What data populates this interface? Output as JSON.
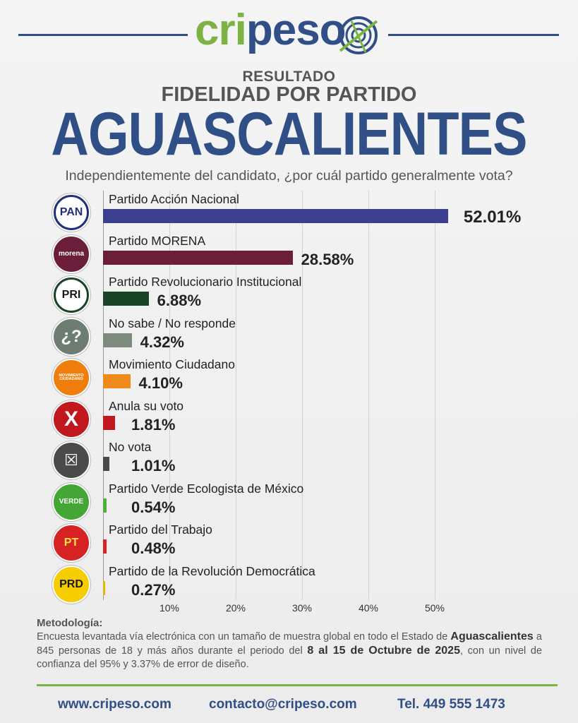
{
  "brand": {
    "part1": "cri",
    "part2": "peso"
  },
  "header": {
    "resultado": "RESULTADO",
    "fidelidad": "FIDELIDAD POR PARTIDO",
    "estado": "AGUASCALIENTES"
  },
  "chart_data": {
    "type": "bar",
    "orientation": "horizontal",
    "title": "Independientemente del candidato, ¿por cuál partido generalmente vota?",
    "xlim": [
      0,
      55
    ],
    "ticks": [
      "10%",
      "20%",
      "30%",
      "40%",
      "50%"
    ],
    "tick_values": [
      10,
      20,
      30,
      40,
      50
    ],
    "categories": [
      "Partido Acción Nacional",
      "Partido MORENA",
      "Partido Revolucionario Institucional",
      "No sabe / No responde",
      "Movimiento Ciudadano",
      "Anula su voto",
      "No vota",
      "Partido Verde Ecologista de México",
      "Partido del Trabajo",
      "Partido de la Revolución Democrática"
    ],
    "values": [
      52.01,
      28.58,
      6.88,
      4.32,
      4.1,
      1.81,
      1.01,
      0.54,
      0.48,
      0.27
    ],
    "value_labels": [
      "52.01%",
      "28.58%",
      "6.88%",
      "4.32%",
      "4.10%",
      "1.81%",
      "1.01%",
      "0.54%",
      "0.48%",
      "0.27%"
    ],
    "colors": [
      "#3b3f8f",
      "#6b1d3a",
      "#1a4428",
      "#7d8b7f",
      "#f08a1c",
      "#c0181c",
      "#4a4a4a",
      "#4fae3b",
      "#d62222",
      "#e8b800"
    ],
    "icons": [
      {
        "name": "pan-logo-icon",
        "text": "PAN",
        "bg": "#ffffff",
        "fg": "#22307a",
        "border": "#22307a"
      },
      {
        "name": "morena-logo-icon",
        "text": "morena",
        "bg": "#6b1d3a",
        "fg": "#ffffff",
        "border": "#6b1d3a"
      },
      {
        "name": "pri-logo-icon",
        "text": "PRI",
        "bg": "#ffffff",
        "fg": "#1a1a1a",
        "border": "#1a4428"
      },
      {
        "name": "question-icon",
        "text": "¿?",
        "bg": "#6e7d72",
        "fg": "#ffffff",
        "border": "#6e7d72"
      },
      {
        "name": "mc-logo-icon",
        "text": "MOVIMIENTO CIUDADANO",
        "bg": "#f07e0c",
        "fg": "#ffffff",
        "border": "#f07e0c"
      },
      {
        "name": "cross-icon",
        "text": "X",
        "bg": "#c0181c",
        "fg": "#ffffff",
        "border": "#c0181c"
      },
      {
        "name": "no-vote-icon",
        "text": "☒",
        "bg": "#4a4a4a",
        "fg": "#ffffff",
        "border": "#4a4a4a"
      },
      {
        "name": "verde-logo-icon",
        "text": "VERDE",
        "bg": "#43a635",
        "fg": "#ffffff",
        "border": "#43a635"
      },
      {
        "name": "pt-logo-icon",
        "text": "PT",
        "bg": "#d62222",
        "fg": "#ffe14a",
        "border": "#d62222"
      },
      {
        "name": "prd-logo-icon",
        "text": "PRD",
        "bg": "#f5cd00",
        "fg": "#1a1a1a",
        "border": "#f5cd00"
      }
    ]
  },
  "methodology": {
    "title": "Metodología:",
    "p1": "Encuesta levantada vía electrónica con un tamaño de muestra global en todo el Estado de",
    "state": "Aguascalientes",
    "p2": "a 845 personas de 18 y más años durante el periodo del",
    "dates": "8 al 15 de Octubre de 2025",
    "p3": ", con un nivel de confianza del 95% y 3.37% de error de diseño."
  },
  "footer": {
    "website": "www.cripeso.com",
    "email": "contacto@cripeso.com",
    "phone": "Tel. 449 555 1473"
  }
}
